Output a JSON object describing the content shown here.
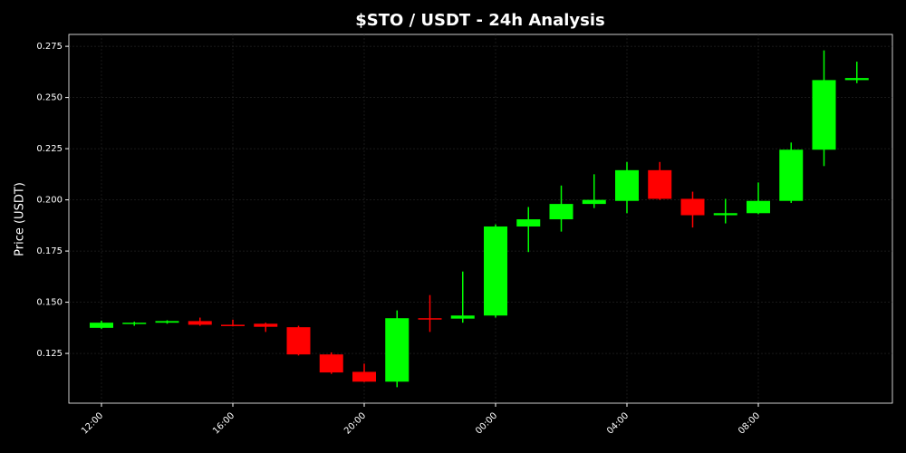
{
  "chart_data": {
    "type": "candlestick",
    "title": "$STO / USDT - 24h Analysis",
    "y_label": "Price (USDT)",
    "categories": [
      "12:00",
      null,
      null,
      null,
      "16:00",
      null,
      null,
      null,
      "20:00",
      null,
      null,
      null,
      "00:00",
      null,
      null,
      null,
      "04:00",
      null,
      null,
      null,
      "08:00",
      null,
      null,
      null
    ],
    "open": [
      0.1375,
      0.1398,
      0.14,
      0.1408,
      0.139,
      0.1395,
      0.1378,
      0.1245,
      0.116,
      0.1112,
      0.1422,
      0.142,
      0.1435,
      0.187,
      0.1905,
      0.198,
      0.1995,
      0.2145,
      0.2005,
      0.1925,
      0.1935,
      0.1995,
      0.2245,
      0.2585
    ],
    "high": [
      0.141,
      0.1405,
      0.1412,
      0.1425,
      0.1415,
      0.14,
      0.1385,
      0.1255,
      0.12,
      0.146,
      0.1535,
      0.165,
      0.188,
      0.1965,
      0.207,
      0.2125,
      0.2185,
      0.2185,
      0.204,
      0.2005,
      0.2085,
      0.228,
      0.273,
      0.2675
    ],
    "low": [
      0.137,
      0.1385,
      0.1395,
      0.1385,
      0.1382,
      0.1355,
      0.124,
      0.115,
      0.111,
      0.1085,
      0.1355,
      0.14,
      0.1425,
      0.1745,
      0.1845,
      0.196,
      0.1935,
      0.2,
      0.1865,
      0.1885,
      0.193,
      0.1985,
      0.2165,
      0.257
    ],
    "close": [
      0.14,
      0.14,
      0.1408,
      0.139,
      0.1388,
      0.138,
      0.1245,
      0.1157,
      0.1112,
      0.1422,
      0.142,
      0.1435,
      0.187,
      0.1905,
      0.198,
      0.2,
      0.2145,
      0.2005,
      0.1925,
      0.1935,
      0.1995,
      0.2245,
      0.2585,
      0.2595
    ],
    "up_color": "#00ff00",
    "down_color": "#ff0000",
    "ylim": [
      0.1007,
      0.2808
    ],
    "yticks": [
      0.125,
      {
        "value": 0.15,
        "label": "0.150"
      },
      0.175,
      {
        "value": 0.2,
        "label": "0.200"
      },
      0.225,
      {
        "value": 0.25,
        "label": "0.250"
      },
      0.275
    ],
    "grid": true
  }
}
